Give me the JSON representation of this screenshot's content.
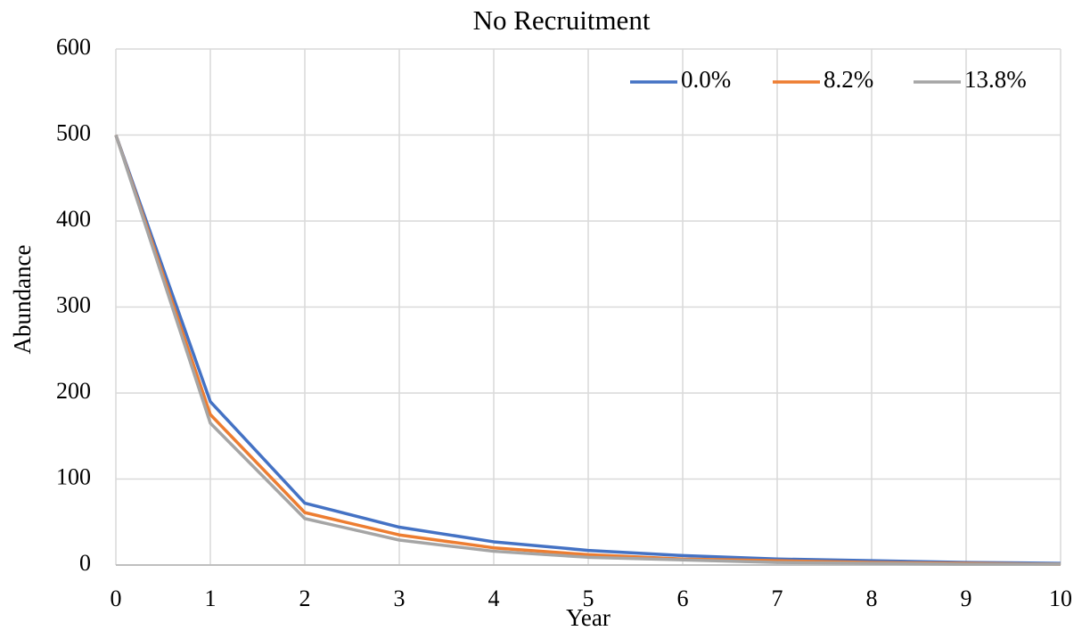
{
  "chart_data": {
    "type": "line",
    "title": "No Recruitment",
    "x_label": "Year",
    "y_label": "Abundance",
    "x": [
      0,
      1,
      2,
      3,
      4,
      5,
      6,
      7,
      8,
      9,
      10
    ],
    "series": [
      {
        "name": "0.0%",
        "color": "#4472c4",
        "values": [
          500,
          190,
          72,
          44,
          27,
          17,
          11,
          7,
          5,
          3,
          2
        ]
      },
      {
        "name": "8.2%",
        "color": "#ed7d31",
        "values": [
          500,
          175,
          61,
          35,
          20,
          12,
          7,
          5,
          3,
          2,
          1
        ]
      },
      {
        "name": "13.8%",
        "color": "#a5a5a5",
        "values": [
          500,
          165,
          54,
          29,
          16,
          9,
          6,
          3,
          2,
          1,
          1
        ]
      }
    ],
    "xlim": [
      0,
      10
    ],
    "xticks": [
      0,
      1,
      2,
      3,
      4,
      5,
      6,
      7,
      8,
      9,
      10
    ],
    "ylim": [
      0,
      600
    ],
    "yticks": [
      0,
      100,
      200,
      300,
      400,
      500,
      600
    ],
    "grid": true,
    "legend": "top-right"
  }
}
